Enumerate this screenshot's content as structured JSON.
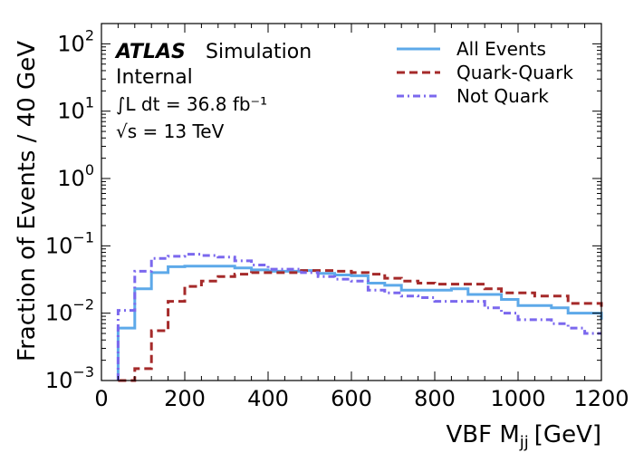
{
  "chart_data": {
    "type": "line",
    "step": true,
    "xlabel": "VBF M",
    "xlabel_sub": "jj",
    "xlabel_unit": "[GeV]",
    "ylabel": "Fraction of Events / 40 GeV",
    "xlim": [
      0,
      1200
    ],
    "ylim": [
      0.001,
      200
    ],
    "yscale": "log",
    "x_ticks": [
      0,
      200,
      400,
      600,
      800,
      1000,
      1200
    ],
    "y_tick_labels": [
      "10^-3",
      "10^-2",
      "10^-1",
      "10^0",
      "10^1",
      "10^2"
    ],
    "legend_position": "top-right",
    "annotations": {
      "atlas": "ATLAS",
      "simulation": "Simulation",
      "internal": "Internal",
      "lumi": "∫L dt = 36.8 fb⁻¹",
      "energy": "√s = 13 TeV"
    },
    "bin_edges": [
      40,
      80,
      120,
      160,
      200,
      240,
      280,
      320,
      360,
      400,
      440,
      480,
      520,
      560,
      600,
      640,
      680,
      720,
      760,
      800,
      840,
      880,
      920,
      960,
      1000,
      1040,
      1080,
      1120,
      1160,
      1200
    ],
    "series": [
      {
        "name": "All Events",
        "style": "solid",
        "color": "#5da9e9",
        "values": [
          0.006,
          0.023,
          0.04,
          0.049,
          0.05,
          0.05,
          0.05,
          0.047,
          0.044,
          0.042,
          0.042,
          0.043,
          0.039,
          0.037,
          0.036,
          0.028,
          0.026,
          0.022,
          0.022,
          0.022,
          0.023,
          0.019,
          0.019,
          0.016,
          0.013,
          0.013,
          0.012,
          0.01,
          0.01,
          0.008
        ]
      },
      {
        "name": "Quark-Quark",
        "style": "dashed",
        "color": "#a52a2a",
        "values": [
          0.001,
          0.0015,
          0.0055,
          0.015,
          0.025,
          0.03,
          0.035,
          0.038,
          0.04,
          0.04,
          0.04,
          0.043,
          0.043,
          0.042,
          0.04,
          0.038,
          0.033,
          0.03,
          0.028,
          0.027,
          0.027,
          0.027,
          0.023,
          0.02,
          0.02,
          0.018,
          0.018,
          0.014,
          0.014,
          0.011
        ]
      },
      {
        "name": "Not Quark",
        "style": "dashdot",
        "color": "#7b68ee",
        "values": [
          0.011,
          0.042,
          0.065,
          0.07,
          0.075,
          0.072,
          0.068,
          0.06,
          0.052,
          0.045,
          0.045,
          0.04,
          0.035,
          0.032,
          0.03,
          0.022,
          0.02,
          0.018,
          0.017,
          0.015,
          0.015,
          0.015,
          0.012,
          0.01,
          0.008,
          0.008,
          0.007,
          0.006,
          0.005,
          0.005
        ]
      }
    ]
  }
}
